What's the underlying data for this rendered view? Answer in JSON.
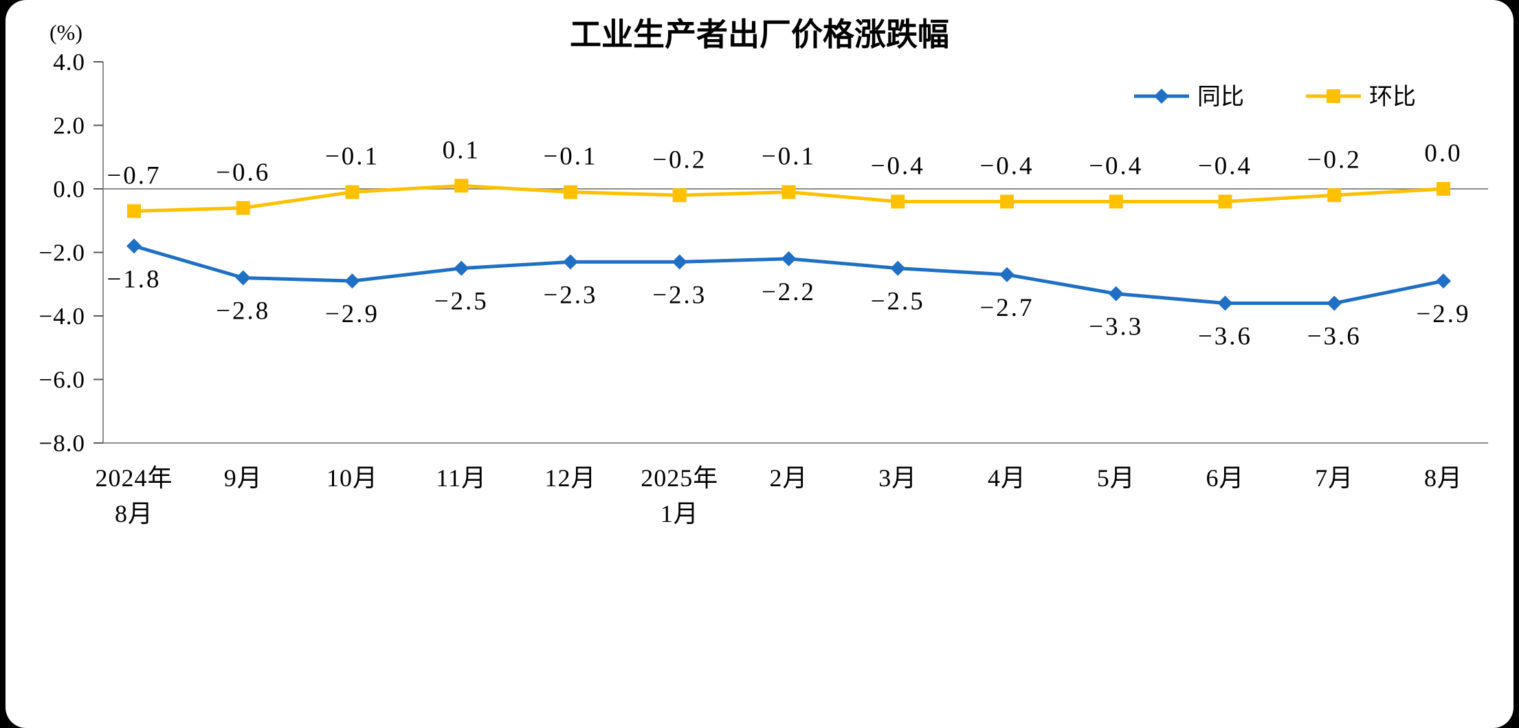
{
  "window": {
    "background": "#000000",
    "panel_background": "#ffffff"
  },
  "chart_data": {
    "type": "line",
    "title": "工业生产者出厂价格涨跌幅",
    "unit_label": "(%)",
    "categories": [
      [
        "2024年",
        "8月"
      ],
      [
        "9月"
      ],
      [
        "10月"
      ],
      [
        "11月"
      ],
      [
        "12月"
      ],
      [
        "2025年",
        "1月"
      ],
      [
        "2月"
      ],
      [
        "3月"
      ],
      [
        "4月"
      ],
      [
        "5月"
      ],
      [
        "6月"
      ],
      [
        "7月"
      ],
      [
        "8月"
      ]
    ],
    "y_axis": {
      "min": -8.0,
      "max": 4.0,
      "step": 2.0,
      "tick_labels": [
        "4.0",
        "2.0",
        "0.0",
        "-2.0",
        "-4.0",
        "-6.0",
        "-8.0"
      ]
    },
    "grid": false,
    "legend_position": "top-right",
    "series": [
      {
        "id": "yoy",
        "name": "同比",
        "color": "#1F6FC5",
        "marker": "diamond",
        "label_position": "below",
        "values": [
          -1.8,
          -2.8,
          -2.9,
          -2.5,
          -2.3,
          -2.3,
          -2.2,
          -2.5,
          -2.7,
          -3.3,
          -3.6,
          -3.6,
          -2.9
        ]
      },
      {
        "id": "mom",
        "name": "环比",
        "color": "#FFC000",
        "marker": "square",
        "label_position": "above",
        "values": [
          -0.7,
          -0.6,
          -0.1,
          0.1,
          -0.1,
          -0.2,
          -0.1,
          -0.4,
          -0.4,
          -0.4,
          -0.4,
          -0.2,
          0.0
        ]
      }
    ]
  }
}
